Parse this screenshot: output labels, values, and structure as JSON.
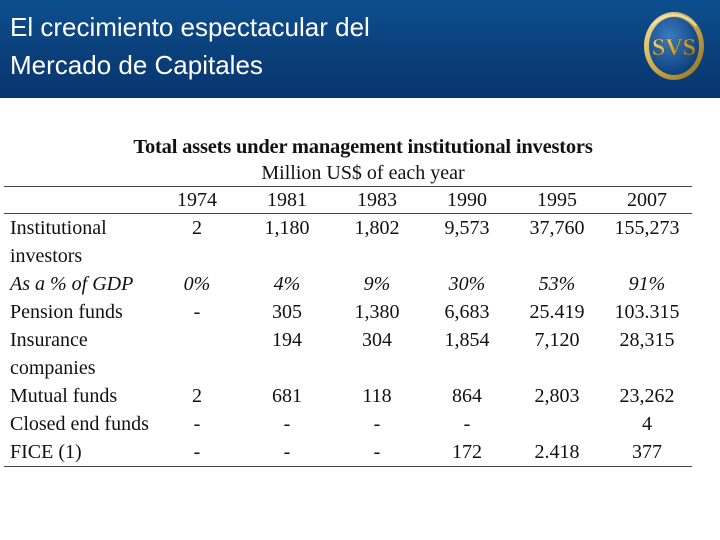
{
  "header": {
    "title_line1": "El crecimiento espectacular del",
    "title_line2": "Mercado de Capitales",
    "logo_text": "SVS"
  },
  "table": {
    "title": "Total assets under management institutional investors",
    "subtitle": "Million US$ of each year",
    "years": [
      "1974",
      "1981",
      "1983",
      "1990",
      "1995",
      "2007"
    ],
    "rows": [
      {
        "label": "Institutional investors",
        "values": [
          "2",
          "1,180",
          "1,802",
          "9,573",
          "37,760",
          "155,273"
        ]
      },
      {
        "label": "As a % of GDP",
        "values": [
          "0%",
          "4%",
          "9%",
          "30%",
          "53%",
          "91%"
        ]
      },
      {
        "label": "Pension funds",
        "values": [
          "-",
          "305",
          "1,380",
          "6,683",
          "25.419",
          "103.315"
        ]
      },
      {
        "label": "Insurance companies",
        "values": [
          "",
          "194",
          "304",
          "1,854",
          "7,120",
          "28,315"
        ]
      },
      {
        "label": "Mutual funds",
        "values": [
          "2",
          "681",
          "118",
          "864",
          "2,803",
          "23,262"
        ]
      },
      {
        "label": "Closed end funds",
        "values": [
          "-",
          "-",
          "-",
          "-",
          "",
          "4"
        ]
      },
      {
        "label": "FICE (1)",
        "values": [
          "-",
          "-",
          "-",
          "172",
          "2.418",
          "377"
        ]
      }
    ]
  },
  "colors": {
    "header_bg": "#0a3f7a",
    "header_text": "#ffffff",
    "logo_gold": "#c9a94a"
  }
}
